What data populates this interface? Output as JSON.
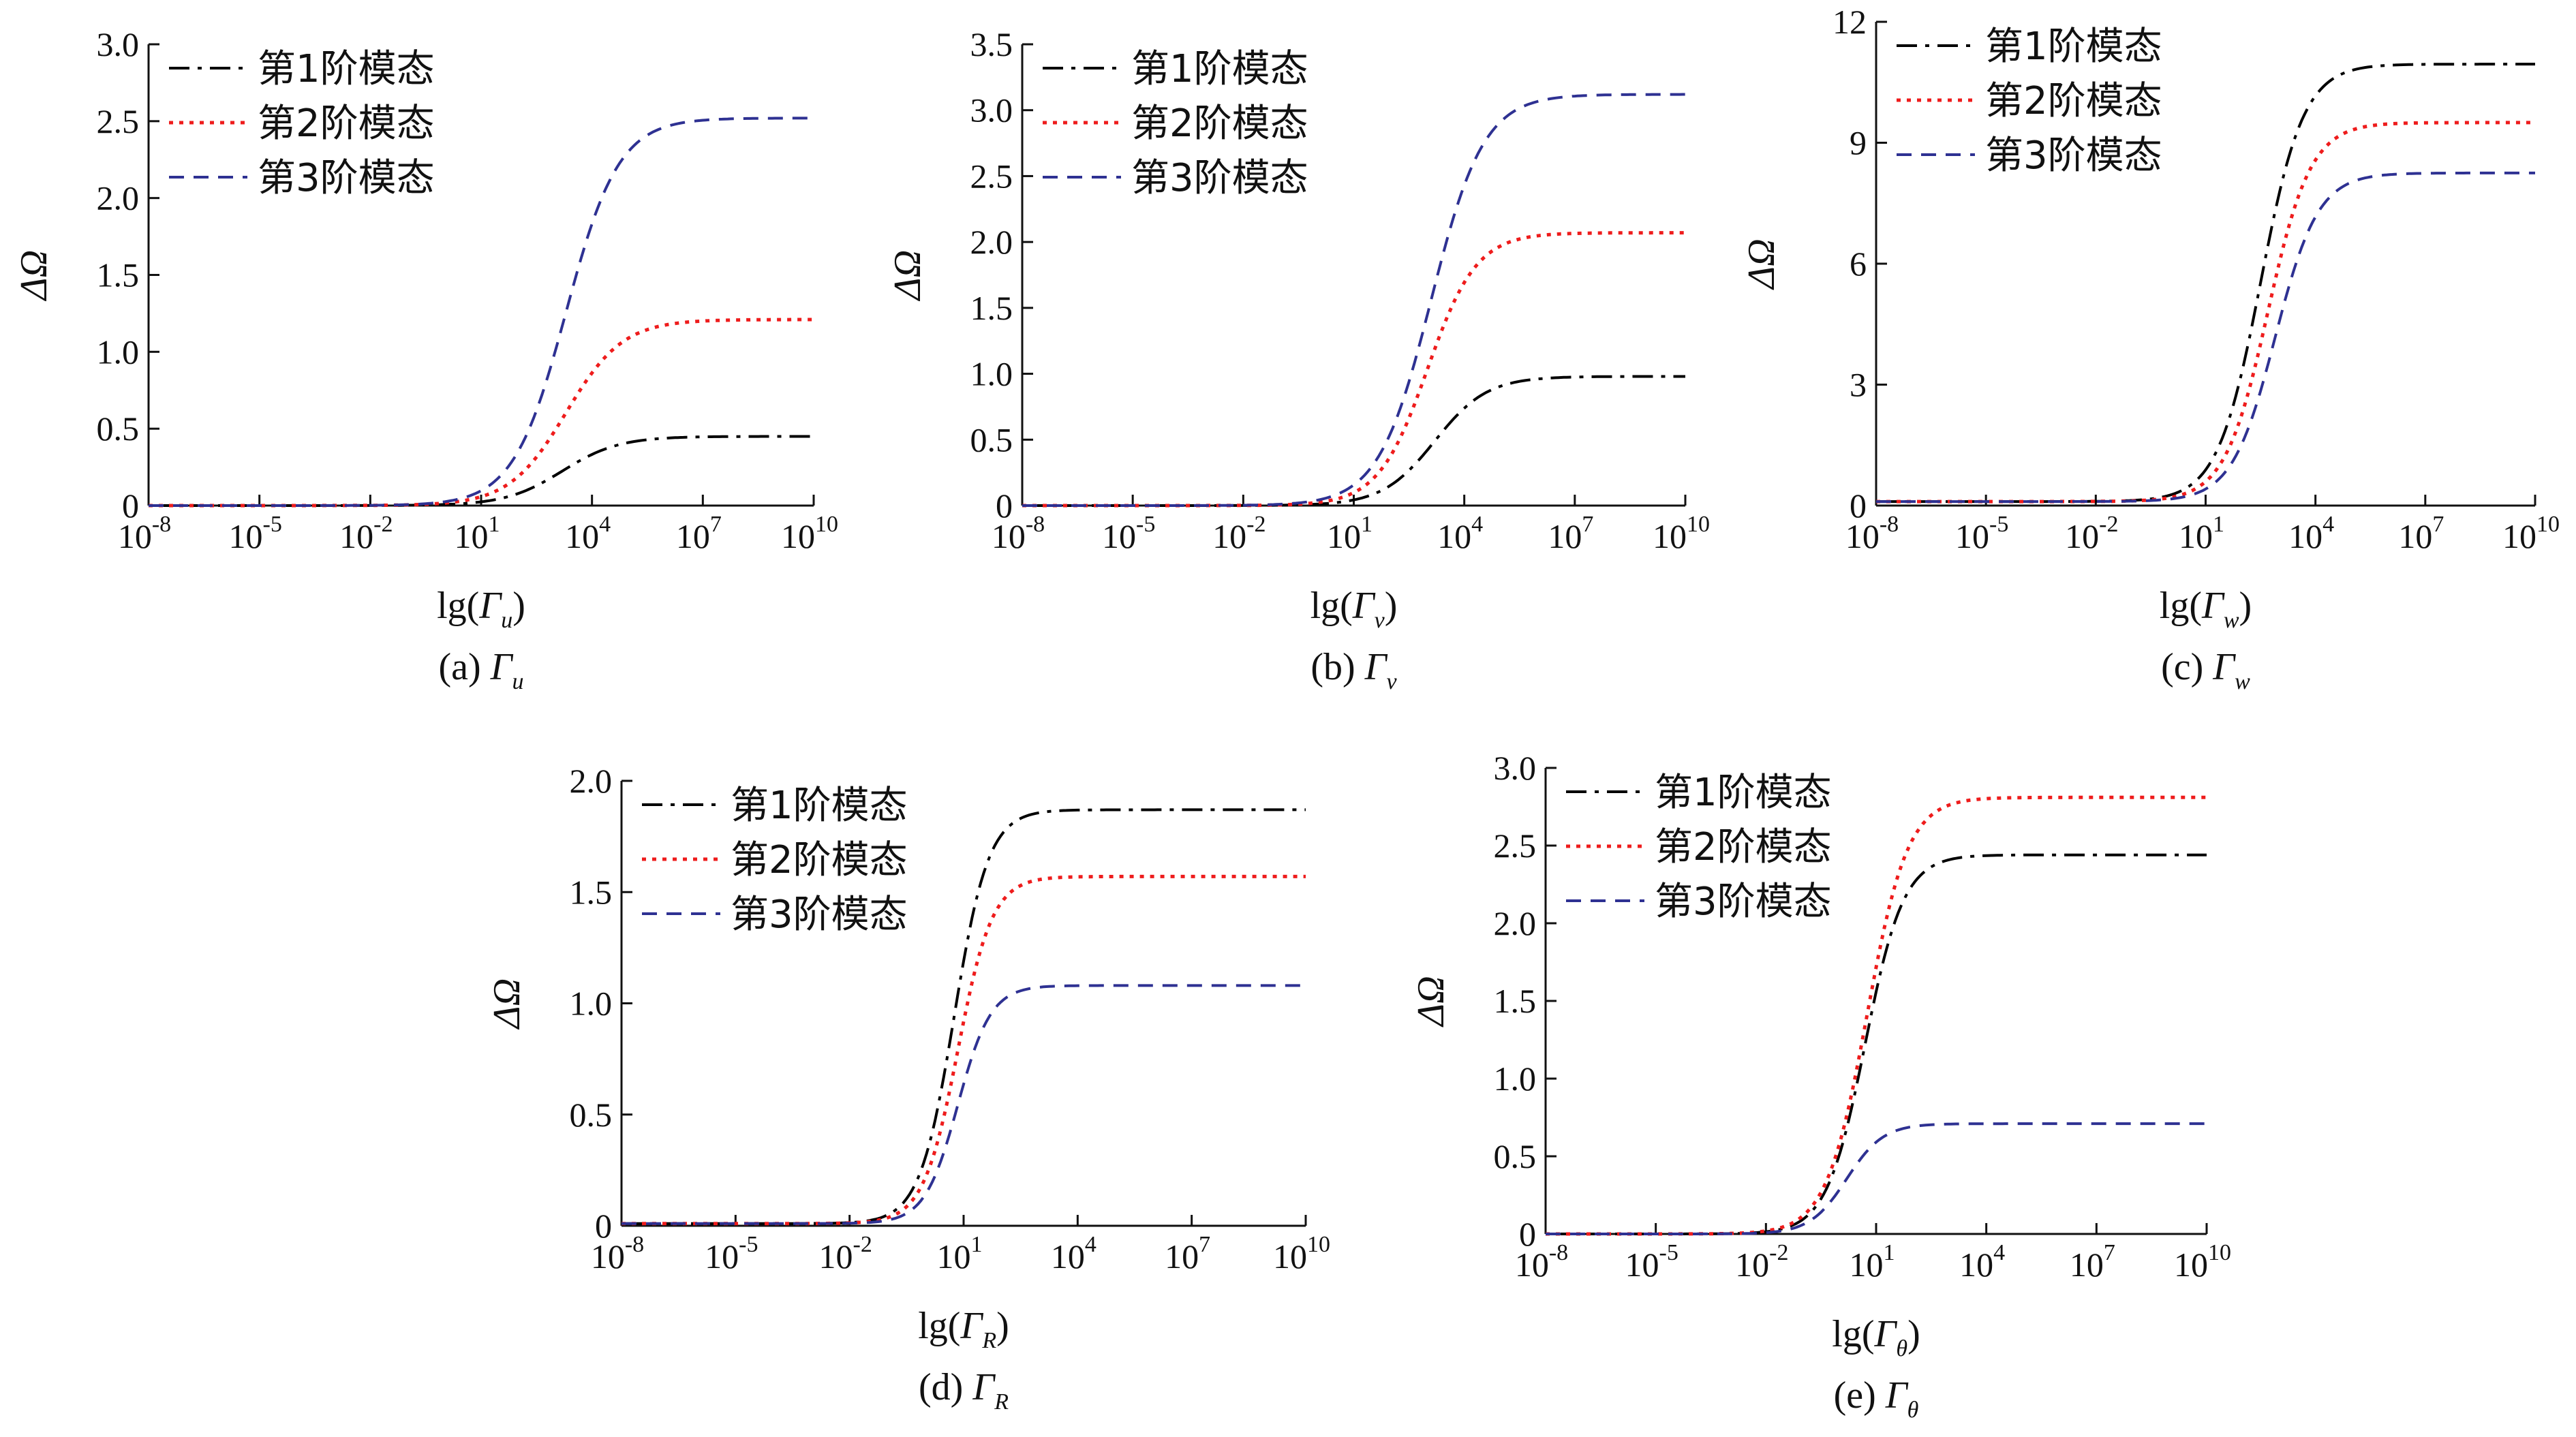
{
  "series_style": [
    {
      "color": "#000000",
      "dash": "30 12 6 12",
      "width": 4
    },
    {
      "color": "#ee1c1c",
      "dash": "6 9",
      "width": 5
    },
    {
      "color": "#2e3192",
      "dash": "22 14",
      "width": 4
    }
  ],
  "chart_data": [
    {
      "type": "line",
      "id": "a",
      "caption": "(a) Γ",
      "caption_sub": "u",
      "xlabel": "lg(Γ",
      "xlabel_sub": "u",
      "xlabel_close": ")",
      "ylabel": "ΔΩ",
      "x_scale": "log",
      "xlim": [
        -8,
        10
      ],
      "ylim": [
        0,
        3.0
      ],
      "x_ticks": [
        {
          "base": "10",
          "exp": "-8",
          "value": -8
        },
        {
          "base": "10",
          "exp": "-5",
          "value": -5
        },
        {
          "base": "10",
          "exp": "-2",
          "value": -2
        },
        {
          "base": "10",
          "exp": "1",
          "value": 1
        },
        {
          "base": "10",
          "exp": "4",
          "value": 4
        },
        {
          "base": "10",
          "exp": "7",
          "value": 7
        },
        {
          "base": "10",
          "exp": "10",
          "value": 10
        }
      ],
      "y_ticks": [
        {
          "label": "0",
          "value": 0
        },
        {
          "label": "0.5",
          "value": 0.5
        },
        {
          "label": "1.0",
          "value": 1.0
        },
        {
          "label": "1.5",
          "value": 1.5
        },
        {
          "label": "2.0",
          "value": 2.0
        },
        {
          "label": "2.5",
          "value": 2.5
        },
        {
          "label": "3.0",
          "value": 3.0
        }
      ],
      "legend_position": "top-left",
      "series": [
        {
          "name": "第1阶模态",
          "low": 0.0,
          "high": 0.45,
          "mid": 3.2,
          "k": 1.3
        },
        {
          "name": "第2阶模态",
          "low": 0.0,
          "high": 1.21,
          "mid": 3.3,
          "k": 1.3
        },
        {
          "name": "第3阶模态",
          "low": 0.0,
          "high": 2.52,
          "mid": 3.3,
          "k": 1.4
        }
      ]
    },
    {
      "type": "line",
      "id": "b",
      "caption": "(b) Γ",
      "caption_sub": "v",
      "xlabel": "lg(Γ",
      "xlabel_sub": "v",
      "xlabel_close": ")",
      "ylabel": "ΔΩ",
      "x_scale": "log",
      "xlim": [
        -8,
        10
      ],
      "ylim": [
        0,
        3.5
      ],
      "x_ticks": [
        {
          "base": "10",
          "exp": "-8",
          "value": -8
        },
        {
          "base": "10",
          "exp": "-5",
          "value": -5
        },
        {
          "base": "10",
          "exp": "-2",
          "value": -2
        },
        {
          "base": "10",
          "exp": "1",
          "value": 1
        },
        {
          "base": "10",
          "exp": "4",
          "value": 4
        },
        {
          "base": "10",
          "exp": "7",
          "value": 7
        },
        {
          "base": "10",
          "exp": "10",
          "value": 10
        }
      ],
      "y_ticks": [
        {
          "label": "0",
          "value": 0
        },
        {
          "label": "0.5",
          "value": 0.5
        },
        {
          "label": "1.0",
          "value": 1.0
        },
        {
          "label": "1.5",
          "value": 1.5
        },
        {
          "label": "2.0",
          "value": 2.0
        },
        {
          "label": "2.5",
          "value": 2.5
        },
        {
          "label": "3.0",
          "value": 3.0
        },
        {
          "label": "3.5",
          "value": 3.5
        }
      ],
      "legend_position": "top-left",
      "series": [
        {
          "name": "第1阶模态",
          "low": 0.0,
          "high": 0.98,
          "mid": 3.2,
          "k": 1.4
        },
        {
          "name": "第2阶模态",
          "low": 0.0,
          "high": 2.07,
          "mid": 3.0,
          "k": 1.5
        },
        {
          "name": "第3阶模态",
          "low": 0.0,
          "high": 3.12,
          "mid": 3.1,
          "k": 1.4
        }
      ]
    },
    {
      "type": "line",
      "id": "c",
      "caption": "(c) Γ",
      "caption_sub": "w",
      "xlabel": "lg(Γ",
      "xlabel_sub": "w",
      "xlabel_close": ")",
      "ylabel": "ΔΩ",
      "x_scale": "log",
      "xlim": [
        -8,
        10
      ],
      "ylim": [
        0,
        12
      ],
      "x_ticks": [
        {
          "base": "10",
          "exp": "-8",
          "value": -8
        },
        {
          "base": "10",
          "exp": "-5",
          "value": -5
        },
        {
          "base": "10",
          "exp": "-2",
          "value": -2
        },
        {
          "base": "10",
          "exp": "1",
          "value": 1
        },
        {
          "base": "10",
          "exp": "4",
          "value": 4
        },
        {
          "base": "10",
          "exp": "7",
          "value": 7
        },
        {
          "base": "10",
          "exp": "10",
          "value": 10
        }
      ],
      "y_ticks": [
        {
          "label": "0",
          "value": 0
        },
        {
          "label": "3",
          "value": 3
        },
        {
          "label": "6",
          "value": 6
        },
        {
          "label": "9",
          "value": 9
        },
        {
          "label": "12",
          "value": 12
        }
      ],
      "legend_position": "top-left",
      "series": [
        {
          "name": "第1阶模态",
          "low": 0.1,
          "high": 10.95,
          "mid": 2.5,
          "k": 1.7
        },
        {
          "name": "第2阶模态",
          "low": 0.1,
          "high": 9.5,
          "mid": 2.7,
          "k": 1.7
        },
        {
          "name": "第3阶模态",
          "low": 0.1,
          "high": 8.25,
          "mid": 2.9,
          "k": 1.7
        }
      ]
    },
    {
      "type": "line",
      "id": "d",
      "caption": "(d) Γ",
      "caption_sub": "R",
      "xlabel": "lg(Γ",
      "xlabel_sub": "R",
      "xlabel_close": ")",
      "ylabel": "ΔΩ",
      "x_scale": "log",
      "xlim": [
        -8,
        10
      ],
      "ylim": [
        0,
        2.0
      ],
      "x_ticks": [
        {
          "base": "10",
          "exp": "-8",
          "value": -8
        },
        {
          "base": "10",
          "exp": "-5",
          "value": -5
        },
        {
          "base": "10",
          "exp": "-2",
          "value": -2
        },
        {
          "base": "10",
          "exp": "1",
          "value": 1
        },
        {
          "base": "10",
          "exp": "4",
          "value": 4
        },
        {
          "base": "10",
          "exp": "7",
          "value": 7
        },
        {
          "base": "10",
          "exp": "10",
          "value": 10
        }
      ],
      "y_ticks": [
        {
          "label": "0",
          "value": 0
        },
        {
          "label": "0.5",
          "value": 0.5
        },
        {
          "label": "1.0",
          "value": 1.0
        },
        {
          "label": "1.5",
          "value": 1.5
        },
        {
          "label": "2.0",
          "value": 2.0
        }
      ],
      "legend_position": "top-left",
      "series": [
        {
          "name": "第1阶模态",
          "low": 0.01,
          "high": 1.87,
          "mid": 0.75,
          "k": 2.2
        },
        {
          "name": "第2阶模态",
          "low": 0.01,
          "high": 1.57,
          "mid": 0.85,
          "k": 2.2
        },
        {
          "name": "第3阶模态",
          "low": 0.01,
          "high": 1.08,
          "mid": 0.85,
          "k": 2.3
        }
      ]
    },
    {
      "type": "line",
      "id": "e",
      "caption": "(e) Γ",
      "caption_sub": "θ",
      "xlabel": "lg(Γ",
      "xlabel_sub": "θ",
      "xlabel_close": ")",
      "ylabel": "ΔΩ",
      "x_scale": "log",
      "xlim": [
        -8,
        10
      ],
      "ylim": [
        0,
        3.0
      ],
      "x_ticks": [
        {
          "base": "10",
          "exp": "-8",
          "value": -8
        },
        {
          "base": "10",
          "exp": "-5",
          "value": -5
        },
        {
          "base": "10",
          "exp": "-2",
          "value": -2
        },
        {
          "base": "10",
          "exp": "1",
          "value": 1
        },
        {
          "base": "10",
          "exp": "4",
          "value": 4
        },
        {
          "base": "10",
          "exp": "7",
          "value": 7
        },
        {
          "base": "10",
          "exp": "10",
          "value": 10
        }
      ],
      "y_ticks": [
        {
          "label": "0",
          "value": 0
        },
        {
          "label": "0.5",
          "value": 0.5
        },
        {
          "label": "1.0",
          "value": 1.0
        },
        {
          "label": "1.5",
          "value": 1.5
        },
        {
          "label": "2.0",
          "value": 2.0
        },
        {
          "label": "2.5",
          "value": 2.5
        },
        {
          "label": "3.0",
          "value": 3.0
        }
      ],
      "legend_position": "top-left",
      "series": [
        {
          "name": "第1阶模态",
          "low": 0.0,
          "high": 2.44,
          "mid": 0.7,
          "k": 1.9
        },
        {
          "name": "第2阶模态",
          "low": 0.0,
          "high": 2.81,
          "mid": 0.75,
          "k": 1.8
        },
        {
          "name": "第3阶模态",
          "low": 0.0,
          "high": 0.71,
          "mid": 0.2,
          "k": 2.0
        }
      ]
    }
  ]
}
